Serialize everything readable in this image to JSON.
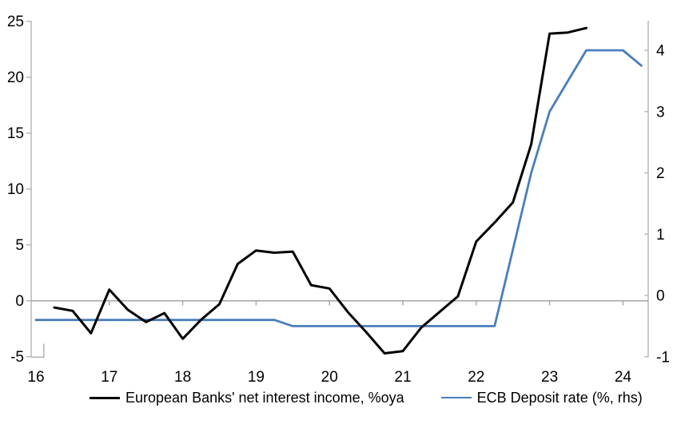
{
  "chart_data": {
    "type": "line",
    "title": "",
    "x_axis": {
      "ticks": [
        16,
        17,
        18,
        19,
        20,
        21,
        22,
        23,
        24
      ],
      "range": [
        16,
        24.35
      ]
    },
    "left_axis": {
      "ticks": [
        -5,
        0,
        5,
        10,
        15,
        20,
        25
      ],
      "range": [
        -5,
        25
      ]
    },
    "right_axis": {
      "ticks": [
        -1,
        0,
        1,
        2,
        3,
        4
      ],
      "range": [
        -1,
        4.47
      ]
    },
    "grid": "zero-line-only",
    "legend_position": "bottom",
    "series": [
      {
        "name": "European Banks' net interest income, %oya",
        "axis": "left",
        "color": "#000000",
        "stroke_width": 3,
        "x": [
          16.25,
          16.5,
          16.75,
          17.0,
          17.25,
          17.5,
          17.75,
          18.0,
          18.25,
          18.5,
          18.75,
          19.0,
          19.25,
          19.5,
          19.75,
          20.0,
          20.25,
          20.5,
          20.75,
          21.0,
          21.25,
          21.5,
          21.75,
          22.0,
          22.25,
          22.5,
          22.75,
          23.0,
          23.25,
          23.5
        ],
        "values": [
          -0.6,
          -0.9,
          -2.9,
          1.0,
          -0.8,
          -1.9,
          -1.1,
          -3.4,
          -1.7,
          -0.3,
          3.3,
          4.5,
          4.3,
          4.4,
          1.4,
          1.1,
          -1.0,
          -2.8,
          -4.7,
          -4.5,
          -2.4,
          -1.0,
          0.4,
          5.3,
          7.0,
          8.8,
          14.0,
          23.9,
          24.0,
          24.4
        ]
      },
      {
        "name": "ECB Deposit rate (%, rhs)",
        "axis": "right",
        "color": "#4a7ebb",
        "stroke_width": 2.8,
        "x": [
          16.0,
          16.25,
          16.5,
          16.75,
          17.0,
          17.25,
          17.5,
          17.75,
          18.0,
          18.25,
          18.5,
          18.75,
          19.0,
          19.25,
          19.5,
          19.75,
          20.0,
          20.25,
          20.5,
          20.75,
          21.0,
          21.25,
          21.5,
          21.75,
          22.0,
          22.25,
          22.5,
          22.75,
          23.0,
          23.25,
          23.5,
          23.75,
          24.0,
          24.25
        ],
        "values": [
          -0.4,
          -0.4,
          -0.4,
          -0.4,
          -0.4,
          -0.4,
          -0.4,
          -0.4,
          -0.4,
          -0.4,
          -0.4,
          -0.4,
          -0.4,
          -0.4,
          -0.5,
          -0.5,
          -0.5,
          -0.5,
          -0.5,
          -0.5,
          -0.5,
          -0.5,
          -0.5,
          -0.5,
          -0.5,
          -0.5,
          0.75,
          2.0,
          3.0,
          3.5,
          4.0,
          4.0,
          4.0,
          3.75
        ]
      }
    ]
  },
  "legend": {
    "items": [
      {
        "label": "European Banks' net interest income, %oya"
      },
      {
        "label": "ECB Deposit rate (%, rhs)"
      }
    ]
  },
  "colors": {
    "nii_line": "#000000",
    "ecb_line": "#4a7ebb",
    "zero_line": "#a6a6a6",
    "axis_spine": "#b3b3b3",
    "text": "#000000",
    "background": "#ffffff"
  }
}
